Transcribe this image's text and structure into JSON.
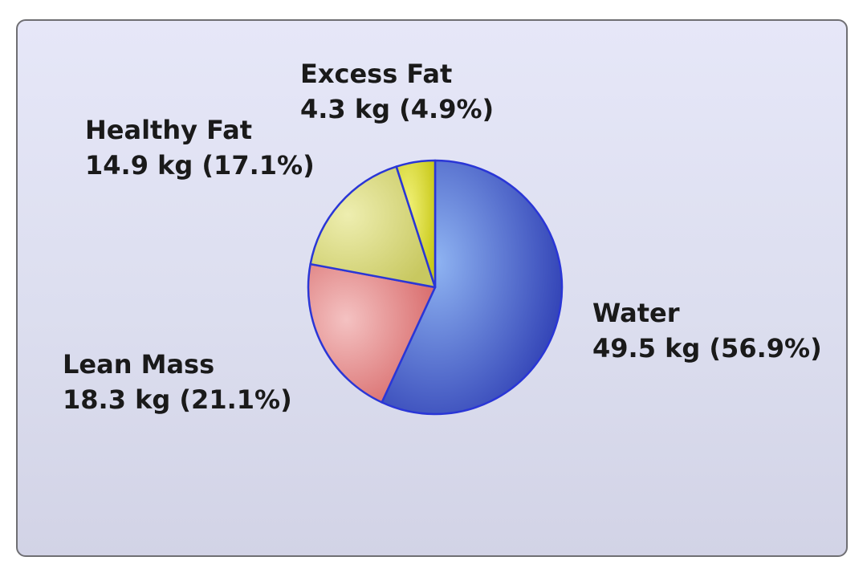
{
  "chart_data": {
    "type": "pie",
    "title": "",
    "units": "kg",
    "slices": [
      {
        "name": "Water",
        "value": 49.5,
        "percent": 56.9,
        "label": "49.5 kg (56.9%)",
        "color_light": "#8fb4f2",
        "color_dark": "#2f3fb4"
      },
      {
        "name": "Lean Mass",
        "value": 18.3,
        "percent": 21.1,
        "label": "18.3 kg (21.1%)",
        "color_light": "#f4c2c2",
        "color_dark": "#d86a6a"
      },
      {
        "name": "Healthy Fat",
        "value": 14.9,
        "percent": 17.1,
        "label": "14.9 kg (17.1%)",
        "color_light": "#eeeeb0",
        "color_dark": "#c8c860"
      },
      {
        "name": "Excess Fat",
        "value": 4.3,
        "percent": 4.9,
        "label": "4.3 kg (4.9%)",
        "color_light": "#f2f27a",
        "color_dark": "#c9c91a"
      }
    ],
    "start_angle": "top",
    "direction": "clockwise",
    "outline_color": "#2a36d6",
    "legend": "none",
    "grid": false
  }
}
